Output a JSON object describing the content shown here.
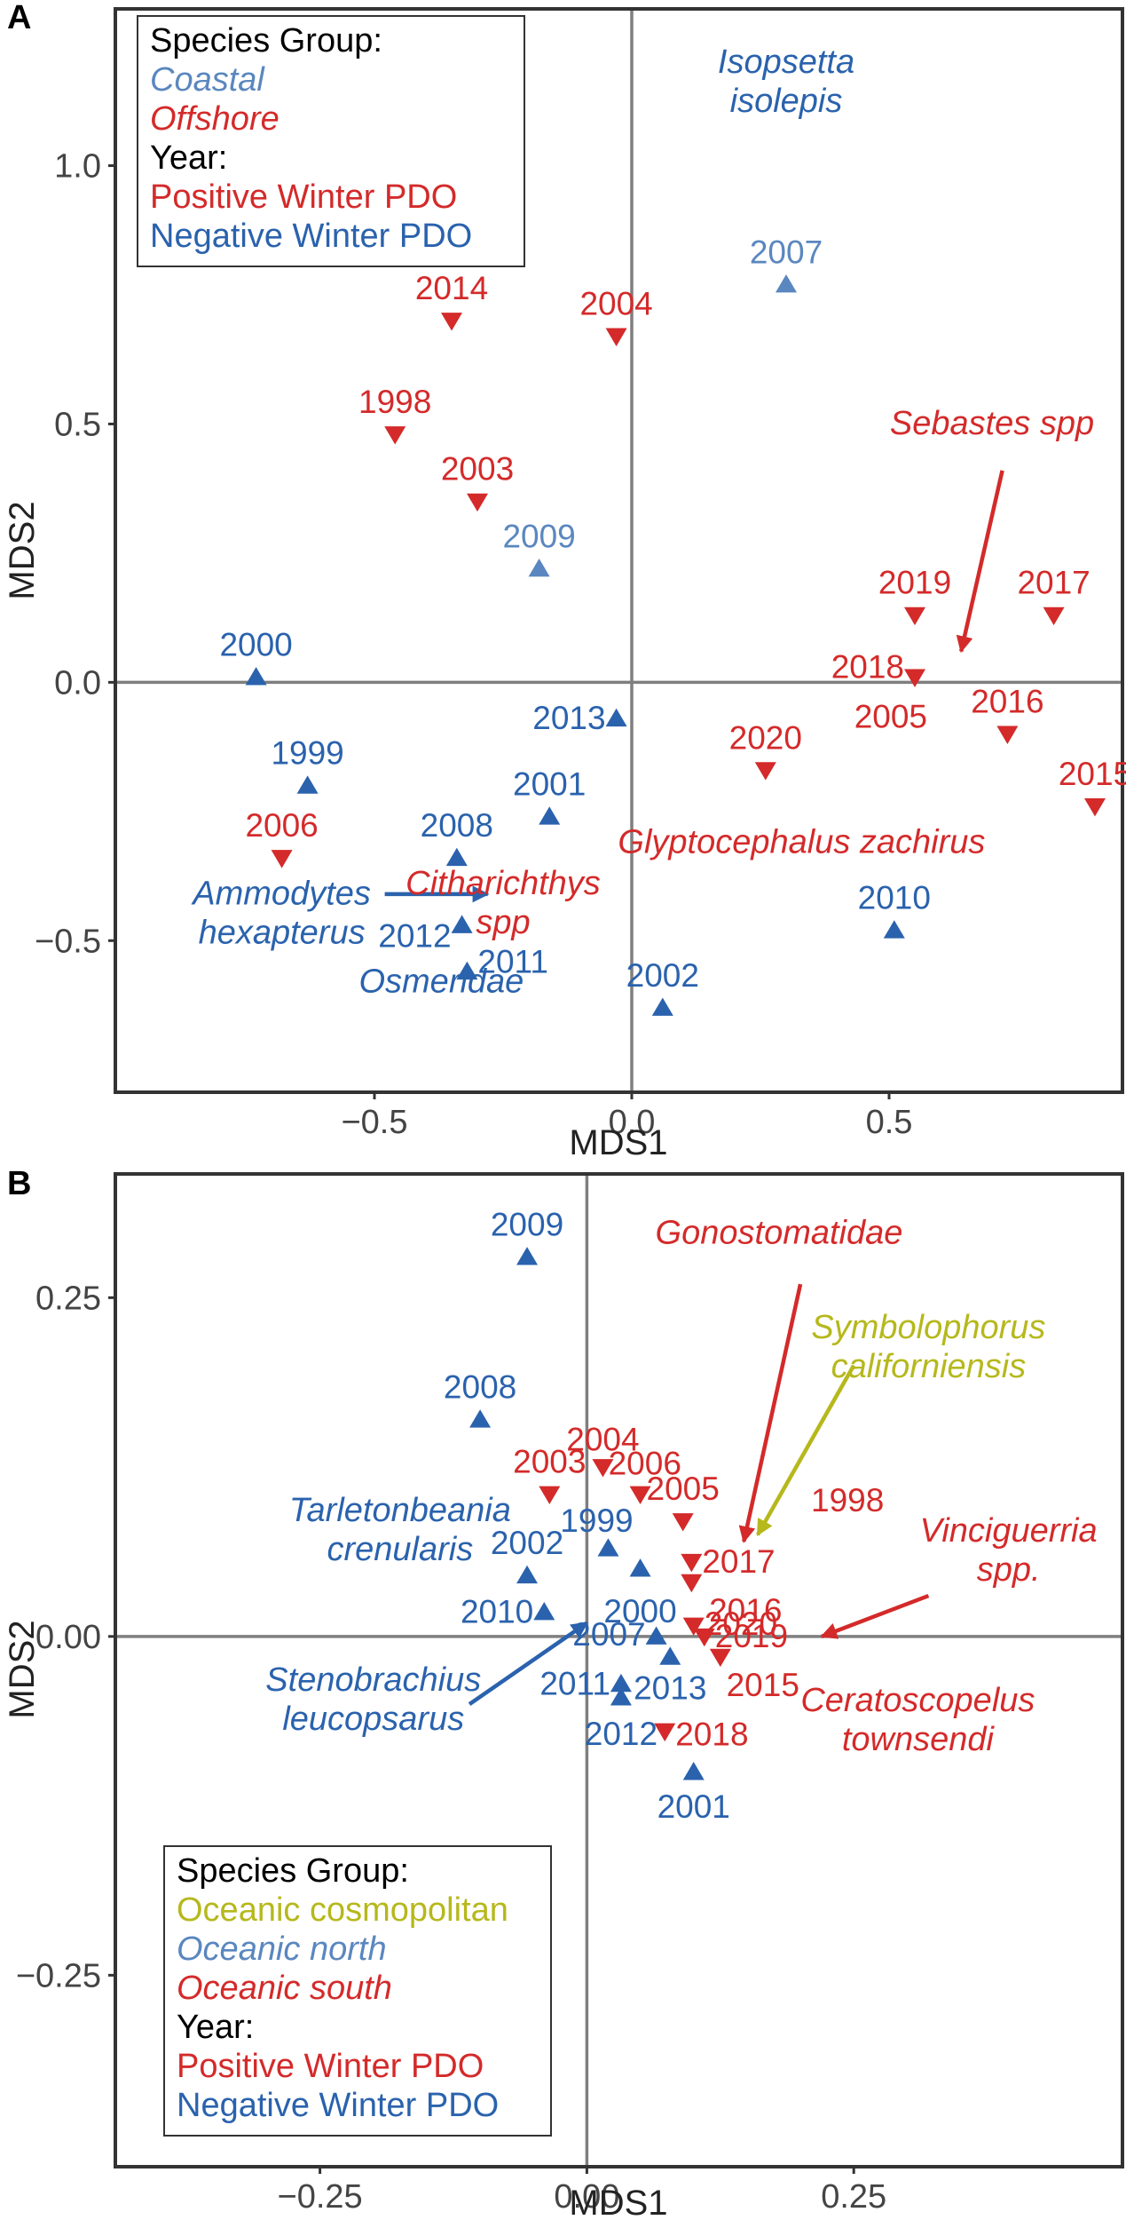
{
  "colors": {
    "red": "#d42a2a",
    "blue": "#2a62ad",
    "lightblue": "#5a87bf",
    "olive": "#b6b81c",
    "black": "#000000",
    "axis": "#7f7f7f"
  },
  "chart_data": [
    {
      "panel": "A",
      "type": "scatter",
      "xlabel": "MDS1",
      "ylabel": "MDS2",
      "xlim": [
        -1.0,
        0.95
      ],
      "ylim": [
        -0.79,
        1.3
      ],
      "xticks": [
        -0.5,
        0.0,
        0.5
      ],
      "xtick_labels": [
        "−0.5",
        "0.0",
        "0.5"
      ],
      "yticks": [
        -0.5,
        0.0,
        0.5,
        1.0
      ],
      "ytick_labels": [
        "−0.5",
        "0.0",
        "0.5",
        "1.0"
      ],
      "legend": {
        "position": "top-left",
        "lines": [
          {
            "text": "Species Group:",
            "color": "black",
            "italic": false
          },
          {
            "text": "Coastal",
            "color": "lightblue",
            "italic": true
          },
          {
            "text": "Offshore",
            "color": "red",
            "italic": true
          },
          {
            "text": "Year:",
            "color": "black",
            "italic": false
          },
          {
            "text": "Positive Winter PDO",
            "color": "red",
            "italic": false
          },
          {
            "text": "Negative Winter PDO",
            "color": "blue",
            "italic": false
          }
        ]
      },
      "points": [
        {
          "year": "2007",
          "x": 0.3,
          "y": 0.77,
          "pdo": "negative",
          "color": "lightblue",
          "label_dx": 0,
          "label_dy": -1
        },
        {
          "year": "2014",
          "x": -0.35,
          "y": 0.7,
          "pdo": "positive",
          "color": "red",
          "label_dx": 0,
          "label_dy": -1
        },
        {
          "year": "2004",
          "x": -0.03,
          "y": 0.67,
          "pdo": "positive",
          "color": "red",
          "label_dx": 0,
          "label_dy": -1
        },
        {
          "year": "1998",
          "x": -0.46,
          "y": 0.48,
          "pdo": "positive",
          "color": "red",
          "label_dx": 0,
          "label_dy": -1
        },
        {
          "year": "2003",
          "x": -0.3,
          "y": 0.35,
          "pdo": "positive",
          "color": "red",
          "label_dx": 0,
          "label_dy": -1
        },
        {
          "year": "2009",
          "x": -0.18,
          "y": 0.22,
          "pdo": "negative",
          "color": "lightblue",
          "label_dx": 0,
          "label_dy": -1
        },
        {
          "year": "2019",
          "x": 0.55,
          "y": 0.13,
          "pdo": "positive",
          "color": "red",
          "label_dx": 0,
          "label_dy": -1
        },
        {
          "year": "2017",
          "x": 0.82,
          "y": 0.13,
          "pdo": "positive",
          "color": "red",
          "label_dx": 0,
          "label_dy": -1
        },
        {
          "year": "2018",
          "x": 0.55,
          "y": 0.01,
          "pdo": "positive",
          "color": "red",
          "label_dx": -1,
          "label_dy": -0.3
        },
        {
          "year": "2000",
          "x": -0.73,
          "y": 0.01,
          "pdo": "negative",
          "color": "blue",
          "label_dx": 0,
          "label_dy": -1
        },
        {
          "year": "2005",
          "x": 0.55,
          "y": 0.01,
          "pdo": "positive",
          "color": "red",
          "label_dx": -0.5,
          "label_dy": 1.25,
          "hide_marker": true
        },
        {
          "year": "2013",
          "x": -0.03,
          "y": -0.07,
          "pdo": "negative",
          "color": "blue",
          "label_dx": -1,
          "label_dy": 0
        },
        {
          "year": "2016",
          "x": 0.73,
          "y": -0.1,
          "pdo": "positive",
          "color": "red",
          "label_dx": 0,
          "label_dy": -1
        },
        {
          "year": "2020",
          "x": 0.26,
          "y": -0.17,
          "pdo": "positive",
          "color": "red",
          "label_dx": 0,
          "label_dy": -1
        },
        {
          "year": "1999",
          "x": -0.63,
          "y": -0.2,
          "pdo": "negative",
          "color": "blue",
          "label_dx": 0,
          "label_dy": -1
        },
        {
          "year": "2015",
          "x": 0.9,
          "y": -0.24,
          "pdo": "positive",
          "color": "red",
          "label_dx": 0,
          "label_dy": -1
        },
        {
          "year": "2001",
          "x": -0.16,
          "y": -0.26,
          "pdo": "negative",
          "color": "blue",
          "label_dx": 0,
          "label_dy": -1
        },
        {
          "year": "2006",
          "x": -0.68,
          "y": -0.34,
          "pdo": "positive",
          "color": "red",
          "label_dx": 0,
          "label_dy": -1
        },
        {
          "year": "2008",
          "x": -0.34,
          "y": -0.34,
          "pdo": "negative",
          "color": "blue",
          "label_dx": 0,
          "label_dy": -1
        },
        {
          "year": "2012",
          "x": -0.33,
          "y": -0.47,
          "pdo": "negative",
          "color": "blue",
          "label_dx": -1,
          "label_dy": 0.35
        },
        {
          "year": "2010",
          "x": 0.51,
          "y": -0.48,
          "pdo": "negative",
          "color": "blue",
          "label_dx": 0,
          "label_dy": -1
        },
        {
          "year": "2011",
          "x": -0.32,
          "y": -0.56,
          "pdo": "negative",
          "color": "blue",
          "label_dx": 1,
          "label_dy": -0.3
        },
        {
          "year": "2002",
          "x": 0.06,
          "y": -0.63,
          "pdo": "negative",
          "color": "blue",
          "label_dx": 0,
          "label_dy": -1
        }
      ],
      "species_labels": [
        {
          "lines": [
            "Isopsetta",
            "isolepis"
          ],
          "x": 0.3,
          "y": 1.18,
          "color": "blue"
        },
        {
          "lines": [
            "Sebastes spp"
          ],
          "x": 0.7,
          "y": 0.48,
          "color": "red"
        },
        {
          "lines": [
            "Glyptocephalus zachirus"
          ],
          "x": 0.33,
          "y": -0.33,
          "color": "red"
        },
        {
          "lines": [
            "Citharichthys",
            "spp"
          ],
          "x": -0.25,
          "y": -0.41,
          "color": "red"
        },
        {
          "lines": [
            "Ammodytes",
            "hexapterus"
          ],
          "x": -0.68,
          "y": -0.43,
          "color": "blue"
        },
        {
          "lines": [
            "Osmeridae"
          ],
          "x": -0.37,
          "y": -0.6,
          "color": "blue"
        }
      ],
      "arrows": [
        {
          "x1": 0.72,
          "y1": 0.41,
          "x2": 0.64,
          "y2": 0.06,
          "color": "red"
        },
        {
          "x1": -0.48,
          "y1": -0.41,
          "x2": -0.28,
          "y2": -0.41,
          "color": "blue"
        }
      ]
    },
    {
      "panel": "B",
      "type": "scatter",
      "xlabel": "MDS1",
      "ylabel": "MDS2",
      "xlim": [
        -0.44,
        0.5
      ],
      "ylim": [
        -0.39,
        0.34
      ],
      "xticks": [
        -0.25,
        0.0,
        0.25
      ],
      "xtick_labels": [
        "−0.25",
        "0.00",
        "0.25"
      ],
      "yticks": [
        -0.25,
        0.0,
        0.25
      ],
      "ytick_labels": [
        "−0.25",
        "0.00",
        "0.25"
      ],
      "legend": {
        "position": "bottom-left",
        "lines": [
          {
            "text": "Species Group:",
            "color": "black",
            "italic": false
          },
          {
            "text": "Oceanic cosmopolitan",
            "color": "olive",
            "italic": false
          },
          {
            "text": "Oceanic north",
            "color": "lightblue",
            "italic": true
          },
          {
            "text": "Oceanic south",
            "color": "red",
            "italic": true
          },
          {
            "text": "Year:",
            "color": "black",
            "italic": false
          },
          {
            "text": "Positive Winter PDO",
            "color": "red",
            "italic": false
          },
          {
            "text": "Negative Winter PDO",
            "color": "blue",
            "italic": false
          }
        ]
      },
      "points": [
        {
          "year": "2009",
          "x": -0.056,
          "y": 0.28,
          "pdo": "negative",
          "color": "blue",
          "label_dx": 0,
          "label_dy": -1
        },
        {
          "year": "2008",
          "x": -0.1,
          "y": 0.16,
          "pdo": "negative",
          "color": "blue",
          "label_dx": 0,
          "label_dy": -1
        },
        {
          "year": "2004",
          "x": 0.015,
          "y": 0.125,
          "pdo": "positive",
          "color": "red",
          "label_dx": 0,
          "label_dy": -0.85
        },
        {
          "year": "2003",
          "x": -0.035,
          "y": 0.105,
          "pdo": "positive",
          "color": "red",
          "label_dx": 0,
          "label_dy": -1
        },
        {
          "year": "2006",
          "x": 0.05,
          "y": 0.105,
          "pdo": "positive",
          "color": "red",
          "label_dx": 0.1,
          "label_dy": -0.95
        },
        {
          "year": "2005",
          "x": 0.09,
          "y": 0.085,
          "pdo": "positive",
          "color": "red",
          "label_dx": 0,
          "label_dy": -1
        },
        {
          "year": "1999",
          "x": 0.02,
          "y": 0.065,
          "pdo": "negative",
          "color": "blue",
          "label_dx": -0.25,
          "label_dy": -0.85
        },
        {
          "year": "2002",
          "x": -0.056,
          "y": 0.045,
          "pdo": "negative",
          "color": "blue",
          "label_dx": 0,
          "label_dy": -1
        },
        {
          "year": "2000",
          "x": 0.05,
          "y": 0.05,
          "pdo": "negative",
          "color": "blue",
          "label_dx": 0,
          "label_dy": 1.35
        },
        {
          "year": "2017",
          "x": 0.098,
          "y": 0.055,
          "pdo": "positive",
          "color": "red",
          "label_dx": 1,
          "label_dy": 0
        },
        {
          "year": "2016",
          "x": 0.098,
          "y": 0.04,
          "pdo": "positive",
          "color": "red",
          "label_dx": 1.15,
          "label_dy": 0.9
        },
        {
          "year": "2010",
          "x": -0.04,
          "y": 0.018,
          "pdo": "negative",
          "color": "blue",
          "label_dx": -1,
          "label_dy": 0
        },
        {
          "year": "2020",
          "x": 0.1,
          "y": 0.008,
          "pdo": "positive",
          "color": "red",
          "label_dx": 1,
          "label_dy": -0.05
        },
        {
          "year": "2007",
          "x": 0.065,
          "y": 0.0,
          "pdo": "negative",
          "color": "blue",
          "label_dx": -1,
          "label_dy": -0.05
        },
        {
          "year": "2019",
          "x": 0.11,
          "y": 0.0,
          "pdo": "positive",
          "color": "red",
          "label_dx": 1,
          "label_dy": 0
        },
        {
          "year": "2013",
          "x": 0.078,
          "y": -0.015,
          "pdo": "negative",
          "color": "blue",
          "label_dx": 0,
          "label_dy": 1
        },
        {
          "year": "2015",
          "x": 0.125,
          "y": -0.015,
          "pdo": "positive",
          "color": "red",
          "label_dx": 0.9,
          "label_dy": 0.9
        },
        {
          "year": "2011",
          "x": 0.032,
          "y": -0.035,
          "pdo": "negative",
          "color": "blue",
          "label_dx": -1,
          "label_dy": 0
        },
        {
          "year": "2012",
          "x": 0.032,
          "y": -0.045,
          "pdo": "negative",
          "color": "blue",
          "label_dx": 0,
          "label_dy": 1.15
        },
        {
          "year": "2018",
          "x": 0.073,
          "y": -0.07,
          "pdo": "positive",
          "color": "red",
          "label_dx": 1,
          "label_dy": 0.1
        },
        {
          "year": "2001",
          "x": 0.1,
          "y": -0.1,
          "pdo": "negative",
          "color": "blue",
          "label_dx": 0,
          "label_dy": 1.1
        },
        {
          "year": "1998",
          "x": 0.2,
          "y": 0.1,
          "pdo": "positive",
          "color": "red",
          "label_dx": 1,
          "label_dy": 0,
          "hide_marker": true
        }
      ],
      "species_labels": [
        {
          "lines": [
            "Gonostomatidae"
          ],
          "x": 0.18,
          "y": 0.29,
          "color": "red"
        },
        {
          "lines": [
            "Symbolophorus",
            "californiensis"
          ],
          "x": 0.32,
          "y": 0.22,
          "color": "olive"
        },
        {
          "lines": [
            "Tarletonbeania",
            "crenularis"
          ],
          "x": -0.175,
          "y": 0.085,
          "color": "blue"
        },
        {
          "lines": [
            "Vinciguerria",
            "spp."
          ],
          "x": 0.395,
          "y": 0.07,
          "color": "red"
        },
        {
          "lines": [
            "Ceratoscopelus",
            "townsendi"
          ],
          "x": 0.31,
          "y": -0.055,
          "color": "red"
        },
        {
          "lines": [
            "Stenobrachius",
            "leucopsarus"
          ],
          "x": -0.2,
          "y": -0.04,
          "color": "blue"
        }
      ],
      "arrows": [
        {
          "x1": 0.2,
          "y1": 0.26,
          "x2": 0.147,
          "y2": 0.07,
          "color": "red"
        },
        {
          "x1": 0.25,
          "y1": 0.2,
          "x2": 0.16,
          "y2": 0.075,
          "color": "olive"
        },
        {
          "x1": 0.32,
          "y1": 0.03,
          "x2": 0.22,
          "y2": 0.0,
          "color": "red"
        },
        {
          "x1": -0.11,
          "y1": -0.05,
          "x2": 0.0,
          "y2": 0.01,
          "color": "blue"
        }
      ]
    }
  ]
}
